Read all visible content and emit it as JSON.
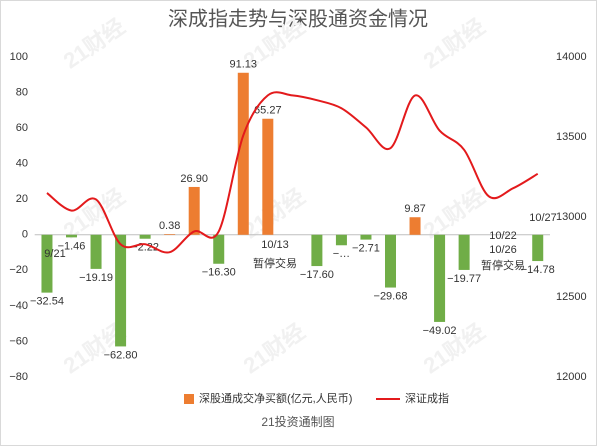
{
  "chart_data": {
    "type": "bar_line",
    "title": "深成指走势与深股通资金情况",
    "footer": "21投资通制图",
    "watermark": "21财经",
    "annotations": [
      "9/21",
      "10/13",
      "暂停交易",
      "10/22",
      "10/26",
      "暂停交易",
      "10/27"
    ],
    "categories": [
      null,
      null,
      null,
      null,
      null,
      null,
      null,
      null,
      null,
      null,
      null,
      null,
      null,
      null,
      null,
      null,
      null,
      null,
      null,
      null,
      null
    ],
    "series": [
      {
        "name": "深股通成交净买额(亿元,人民币)",
        "color": "#ed7d31",
        "negative_color": "#70ad47",
        "values": [
          -32.54,
          -1.46,
          -19.19,
          -62.8,
          -2.22,
          0.38,
          26.9,
          -16.3,
          91.13,
          65.27,
          null,
          -17.6,
          -5.9,
          -2.71,
          -29.68,
          9.87,
          -49.02,
          -19.77,
          null,
          null,
          -14.78
        ],
        "value_labels": [
          "−32.54",
          "−1.46",
          "−19.19",
          "−62.80",
          "−2.22",
          "0.38",
          "26.90",
          "−16.30",
          "91.13",
          "65.27",
          null,
          "−17.60",
          "−…",
          "−2.71",
          "−29.68",
          "9.87",
          "−49.02",
          "−19.77",
          null,
          null,
          "−14.78"
        ]
      },
      {
        "name": "深证成指",
        "color": "#e31a1c",
        "axis": "y2",
        "values": [
          13150,
          13040,
          13110,
          12830,
          12830,
          12780,
          12910,
          12910,
          13510,
          13760,
          13760,
          13730,
          13680,
          13560,
          13430,
          13760,
          13540,
          13420,
          13130,
          13180,
          13270
        ]
      }
    ],
    "ylim": [
      -80,
      100
    ],
    "yticks": [
      {
        "value": -80,
        "label": "−80"
      },
      {
        "value": -60,
        "label": "−60"
      },
      {
        "value": -40,
        "label": "−40"
      },
      {
        "value": -20,
        "label": "−20"
      },
      0,
      20,
      40,
      60,
      80,
      100
    ],
    "y2lim": [
      12000,
      14000
    ],
    "y2ticks": [
      12000,
      12500,
      13000,
      13500,
      14000
    ]
  }
}
